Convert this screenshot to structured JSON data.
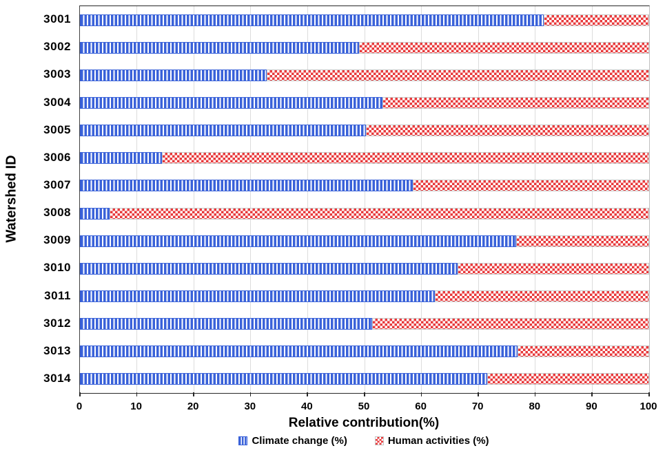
{
  "chart_data": {
    "type": "bar",
    "orientation": "horizontal",
    "stacked": true,
    "title": "",
    "xlabel": "Relative contribution(%)",
    "ylabel": "Watershed ID",
    "xlim": [
      0,
      100
    ],
    "xticks": [
      0,
      10,
      20,
      30,
      40,
      50,
      60,
      70,
      80,
      90,
      100
    ],
    "grid": true,
    "legend_position": "bottom",
    "categories": [
      "3001",
      "3002",
      "3003",
      "3004",
      "3005",
      "3006",
      "3007",
      "3008",
      "3009",
      "3010",
      "3011",
      "3012",
      "3013",
      "3014"
    ],
    "series": [
      {
        "name": "Climate change (%)",
        "color": "#3a62d9",
        "pattern": "vertical-stripes",
        "values": [
          81.5,
          49.0,
          32.8,
          53.2,
          50.3,
          14.4,
          58.5,
          5.2,
          76.6,
          66.4,
          62.3,
          51.3,
          76.9,
          71.6
        ]
      },
      {
        "name": "Human activities (%)",
        "color": "#e8393b",
        "pattern": "checkerboard",
        "values": [
          18.5,
          51.0,
          67.2,
          46.8,
          49.7,
          85.6,
          41.5,
          94.8,
          23.4,
          33.6,
          37.7,
          48.7,
          23.1,
          28.4
        ]
      }
    ]
  },
  "colors": {
    "grid": "#dcdcdc",
    "axis": "#262626",
    "background": "#ffffff",
    "pattern_gap": "#ffffff"
  }
}
